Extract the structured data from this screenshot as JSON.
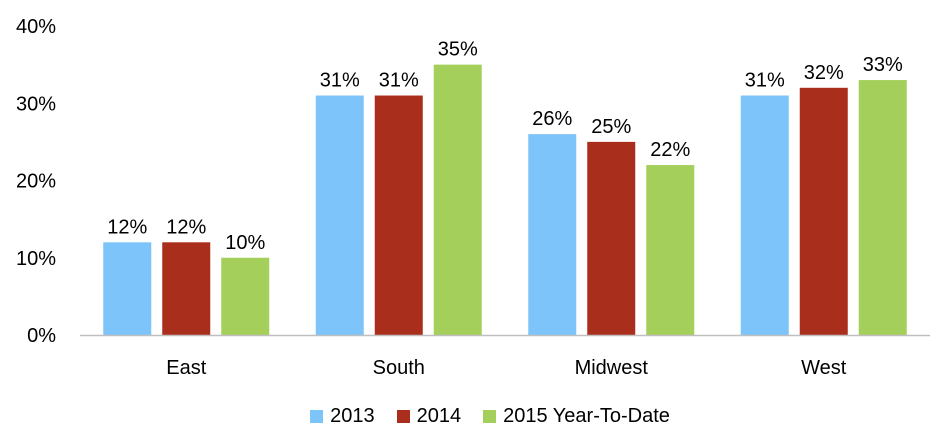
{
  "chart_data": {
    "type": "bar",
    "categories": [
      "East",
      "South",
      "Midwest",
      "West"
    ],
    "series": [
      {
        "name": "2013",
        "values": [
          12,
          31,
          26,
          31
        ],
        "color": "#7cc4fa",
        "labels": [
          "12%",
          "31%",
          "26%",
          "31%"
        ]
      },
      {
        "name": "2014",
        "values": [
          12,
          31,
          25,
          32
        ],
        "color": "#aa2e1c",
        "labels": [
          "12%",
          "31%",
          "25%",
          "32%"
        ]
      },
      {
        "name": "2015 Year-To-Date",
        "values": [
          10,
          35,
          22,
          33
        ],
        "color": "#a3cf5a",
        "labels": [
          "10%",
          "35%",
          "22%",
          "33%"
        ]
      }
    ],
    "y_ticks": [
      {
        "value": 0,
        "label": "0%"
      },
      {
        "value": 10,
        "label": "10%"
      },
      {
        "value": 20,
        "label": "20%"
      },
      {
        "value": 30,
        "label": "30%"
      },
      {
        "value": 40,
        "label": "40%"
      }
    ],
    "ylim": [
      0,
      40
    ],
    "title": "",
    "xlabel": "",
    "ylabel": "",
    "grid": false,
    "legend_position": "bottom",
    "axis_color": "#bfbfbf"
  }
}
